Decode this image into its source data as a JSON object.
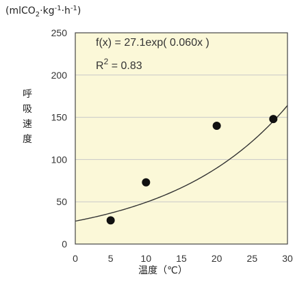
{
  "chart_data": {
    "type": "scatter",
    "ylabel_unit_parts": [
      "(mlCO",
      "2",
      "·kg",
      "-1",
      "·h",
      "-1",
      ")"
    ],
    "ylabel": "呼吸速度",
    "xlabel": "温度（℃）",
    "xlim": [
      0,
      30
    ],
    "ylim": [
      0,
      250
    ],
    "xticks": [
      0,
      5,
      10,
      15,
      20,
      25,
      30
    ],
    "yticks": [
      0,
      50,
      100,
      150,
      200,
      250
    ],
    "grid": "horizontal",
    "points": [
      {
        "x": 5,
        "y": 28
      },
      {
        "x": 10,
        "y": 73
      },
      {
        "x": 20,
        "y": 140
      },
      {
        "x": 28,
        "y": 148
      }
    ],
    "fit": {
      "a": 27.1,
      "b": 0.06
    },
    "annotations": {
      "equation": "f(x) = 27.1exp( 0.060x )",
      "r2_base": "R",
      "r2_exp": "2",
      "r2_value": " = 0.83"
    },
    "colors": {
      "plot_bg": "#fbf8d8",
      "grid": "#c8c8c8",
      "frame": "#444444",
      "marker": "#111111",
      "curve": "#333333"
    }
  }
}
